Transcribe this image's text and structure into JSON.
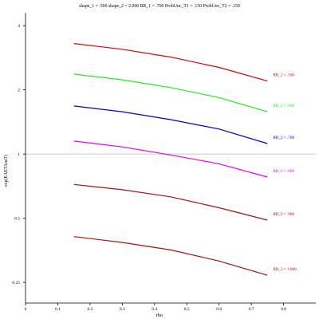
{
  "chart_data": {
    "type": "line",
    "title": "shape_1 = .500  shape_2 = 2.000  RR_1 = .700  ProbUnc_T1 = .150  ProbUnc_T2 = .150",
    "xlabel": "rho",
    "ylabel": "exp(EAETAnaT)",
    "xlim": [
      0,
      0.9
    ],
    "ylim": [
      0.2,
      4.6
    ],
    "yscale": "log",
    "x_ticks": [
      0,
      0.1,
      0.2,
      0.3,
      0.4,
      0.5,
      0.6,
      0.7,
      0.8
    ],
    "x_tick_labels": [
      "0",
      "0.1",
      "0.2",
      "0.3",
      "0.4",
      "0.5",
      "0.6",
      "0.7",
      "0.8"
    ],
    "y_ticks": [
      0.25,
      0.5,
      1,
      2,
      4
    ],
    "y_tick_labels": [
      "0.25",
      "0.5",
      "1",
      "2",
      "4"
    ],
    "reference_line": 1,
    "x": [
      0.15,
      0.3,
      0.45,
      0.6,
      0.75
    ],
    "series": [
      {
        "name": "RR_2 = .500",
        "color": "#e00000",
        "values": [
          3.3,
          3.1,
          2.85,
          2.55,
          2.2
        ]
      },
      {
        "name": "RR_2 = .600",
        "color": "#22ee22",
        "values": [
          2.37,
          2.23,
          2.05,
          1.84,
          1.58
        ]
      },
      {
        "name": "RR_2 = .700",
        "color": "#0000dd",
        "values": [
          1.68,
          1.58,
          1.45,
          1.31,
          1.12
        ]
      },
      {
        "name": "RR_2 = .800",
        "color": "#ee00ee",
        "values": [
          1.15,
          1.08,
          0.99,
          0.9,
          0.78
        ]
      },
      {
        "name": "RR_2 = .900",
        "color": "#aa1111",
        "values": [
          0.72,
          0.68,
          0.63,
          0.56,
          0.49
        ]
      },
      {
        "name": "RR_2 = 1.000",
        "color": "#aa1111",
        "values": [
          0.41,
          0.385,
          0.355,
          0.315,
          0.27
        ]
      }
    ]
  }
}
